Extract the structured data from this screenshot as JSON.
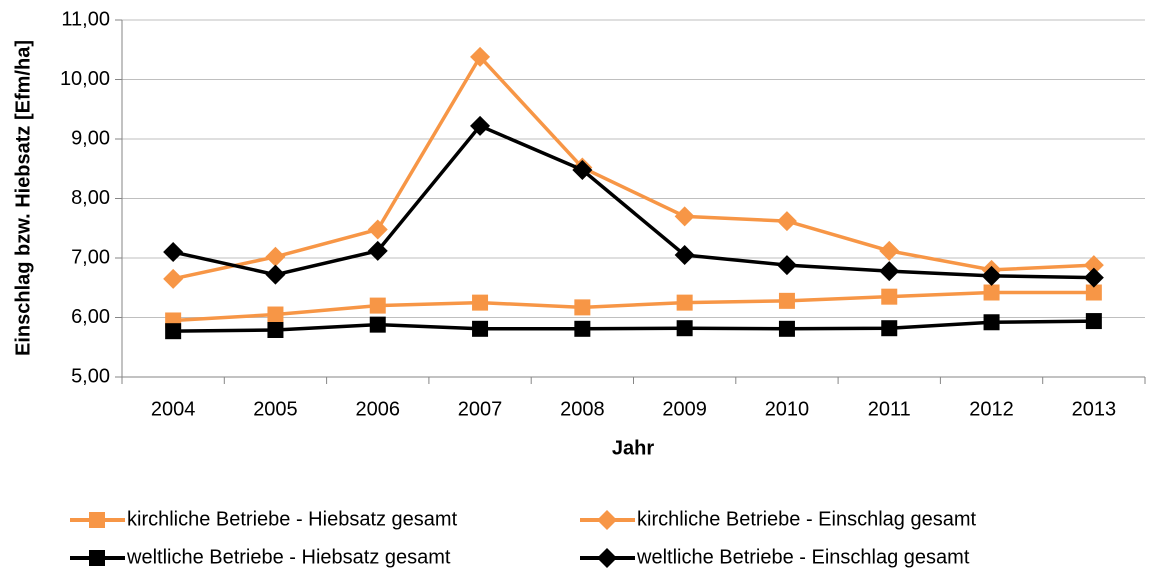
{
  "chart_data": {
    "type": "line",
    "y_label": "Einschlag bzw. Hiebsatz [Efm/ha]",
    "x_label": "Jahr",
    "categories": [
      "2004",
      "2005",
      "2006",
      "2007",
      "2008",
      "2009",
      "2010",
      "2011",
      "2012",
      "2013"
    ],
    "ylim": [
      5,
      11
    ],
    "yticks": [
      {
        "value": 5,
        "label": "5,00"
      },
      {
        "value": 6,
        "label": "6,00"
      },
      {
        "value": 7,
        "label": "7,00"
      },
      {
        "value": 8,
        "label": "8,00"
      },
      {
        "value": 9,
        "label": "9,00"
      },
      {
        "value": 10,
        "label": "10,00"
      },
      {
        "value": 11,
        "label": "11,00"
      }
    ],
    "grid": true,
    "legend": "bottom",
    "series": [
      {
        "name": "kirchliche Betriebe - Hiebsatz gesamt",
        "color": "#f79646",
        "marker": "square",
        "values": [
          5.95,
          6.05,
          6.2,
          6.25,
          6.17,
          6.25,
          6.28,
          6.35,
          6.42,
          6.42
        ]
      },
      {
        "name": "kirchliche Betriebe - Einschlag gesamt",
        "color": "#f79646",
        "marker": "diamond",
        "values": [
          6.65,
          7.02,
          7.48,
          10.38,
          8.52,
          7.7,
          7.62,
          7.12,
          6.8,
          6.88
        ]
      },
      {
        "name": "weltliche Betriebe - Hiebsatz gesamt",
        "color": "#000000",
        "marker": "square",
        "values": [
          5.77,
          5.79,
          5.88,
          5.81,
          5.81,
          5.82,
          5.81,
          5.82,
          5.92,
          5.94
        ]
      },
      {
        "name": "weltliche Betriebe - Einschlag gesamt",
        "color": "#000000",
        "marker": "diamond",
        "values": [
          7.1,
          6.72,
          7.12,
          9.22,
          8.48,
          7.05,
          6.88,
          6.78,
          6.7,
          6.67
        ]
      }
    ]
  }
}
